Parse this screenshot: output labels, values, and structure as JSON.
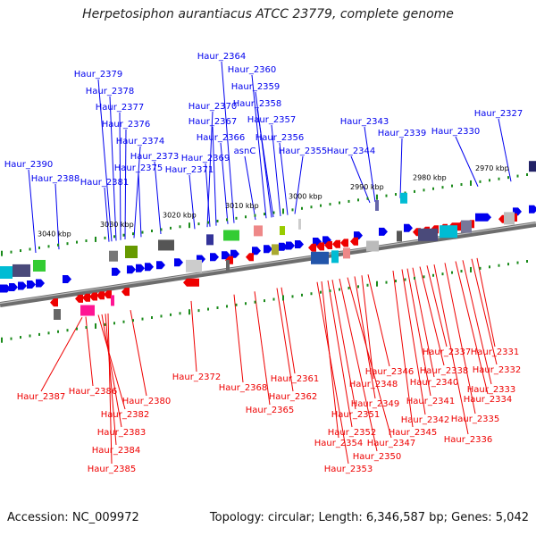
{
  "title": "Herpetosiphon aurantiacus ATCC 23779, complete genome",
  "accession": "Accession: NC_009972",
  "topology": "Topology: circular; Length: 6,346,587 bp; Genes: 5,042",
  "colors": {
    "forward": "#0000ee",
    "reverse": "#ee0000",
    "backbone": "#888888",
    "tick_mark": "#1a8a1a"
  },
  "ticks": [
    "3040 kbp",
    "3030 kbp",
    "3020 kbp",
    "3010 kbp",
    "3000 kbp",
    "2990 kbp",
    "2980 kbp",
    "2970 kbp"
  ],
  "forward_genes": [
    "Haur_2390",
    "Haur_2388",
    "Haur_2379",
    "Haur_2378",
    "Haur_2377",
    "Haur_2376",
    "Haur_2374",
    "Haur_2381",
    "Haur_2375",
    "Haur_2373",
    "Haur_2371",
    "Haur_2370",
    "Haur_2369",
    "Haur_2367",
    "Haur_2366",
    "Haur_2364",
    "Haur_2360",
    "Haur_2359",
    "Haur_2358",
    "Haur_2357",
    "Haur_2356",
    "asnC",
    "Haur_2355",
    "Haur_2344",
    "Haur_2343",
    "Haur_2339",
    "Haur_2330",
    "Haur_2327"
  ],
  "reverse_genes": [
    "Haur_2387",
    "Haur_2386",
    "Haur_2382",
    "Haur_2383",
    "Haur_2384",
    "Haur_2385",
    "Haur_2380",
    "Haur_2372",
    "Haur_2368",
    "Haur_2365",
    "Haur_2362",
    "Haur_2361",
    "Haur_2353",
    "Haur_2354",
    "Haur_2352",
    "Haur_2351",
    "Haur_2350",
    "Haur_2347",
    "Haur_2349",
    "Haur_2348",
    "Haur_2346",
    "Haur_2345",
    "Haur_2342",
    "Haur_2341",
    "Haur_2340",
    "Haur_2338",
    "Haur_2337",
    "Haur_2336",
    "Haur_2335",
    "Haur_2334",
    "Haur_2333",
    "Haur_2332",
    "Haur_2331"
  ]
}
